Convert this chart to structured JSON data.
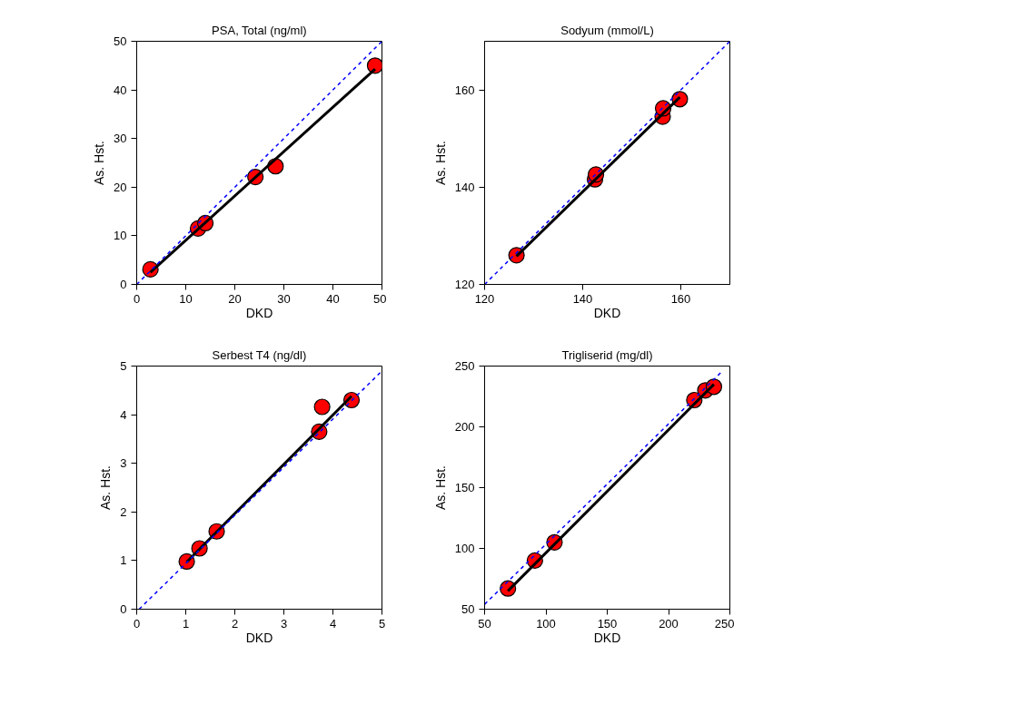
{
  "chart_data": [
    {
      "type": "scatter",
      "title": "PSA, Total (ng/ml)",
      "xlabel": "DKD",
      "ylabel": "As. Hst.",
      "xlim": [
        0,
        50
      ],
      "ylim": [
        0,
        50
      ],
      "xticks": [
        0,
        10,
        20,
        30,
        40,
        50
      ],
      "yticks": [
        0,
        10,
        20,
        30,
        40,
        50
      ],
      "grid": false,
      "series": [
        {
          "marker": "circle",
          "color": "#ff0000",
          "x": [
            2.8,
            12.5,
            14,
            24.2,
            28.3,
            48.6
          ],
          "values": [
            3.1,
            11.5,
            12.6,
            22.1,
            24.3,
            45
          ]
        },
        {
          "type": "line",
          "marker": "none",
          "color": "#000000",
          "line_style": "solid",
          "x": [
            2.8,
            48.6
          ],
          "values": [
            2.5,
            44.3
          ]
        },
        {
          "type": "line",
          "marker": "none",
          "color": "#0000ff",
          "line_style": "dashed",
          "x": [
            0,
            50
          ],
          "values": [
            0,
            50
          ]
        }
      ]
    },
    {
      "type": "scatter",
      "title": "Sodyum (mmol/L)",
      "xlabel": "DKD",
      "ylabel": "As. Hst.",
      "xlim": [
        120,
        170
      ],
      "ylim": [
        120,
        170
      ],
      "xticks": [
        120,
        140,
        160
      ],
      "yticks": [
        120,
        140,
        160
      ],
      "grid": false,
      "series": [
        {
          "marker": "circle",
          "color": "#ff0000",
          "x": [
            126.5,
            142.5,
            142.7,
            156.3,
            156.4,
            159.8
          ],
          "values": [
            126,
            141.6,
            142.6,
            154.5,
            156.2,
            158.1
          ]
        },
        {
          "type": "line",
          "marker": "none",
          "color": "#000000",
          "line_style": "solid",
          "x": [
            126.5,
            159.8
          ],
          "values": [
            125.8,
            158.5
          ]
        },
        {
          "type": "line",
          "marker": "none",
          "color": "#0000ff",
          "line_style": "dashed",
          "x": [
            120,
            170
          ],
          "values": [
            120,
            170
          ]
        }
      ]
    },
    {
      "type": "scatter",
      "title": "Serbest T4 (ng/dl)",
      "xlabel": "DKD",
      "ylabel": "As. Hst.",
      "xlim": [
        0,
        5
      ],
      "ylim": [
        0,
        5
      ],
      "xticks": [
        0,
        1,
        2,
        3,
        4,
        5
      ],
      "yticks": [
        0,
        1,
        2,
        3,
        4,
        5
      ],
      "grid": false,
      "series": [
        {
          "marker": "circle",
          "color": "#ff0000",
          "x": [
            1.02,
            1.28,
            1.63,
            3.72,
            3.78,
            4.38
          ],
          "values": [
            0.98,
            1.25,
            1.6,
            3.65,
            4.16,
            4.3
          ]
        },
        {
          "type": "line",
          "marker": "none",
          "color": "#000000",
          "line_style": "solid",
          "x": [
            1.02,
            4.38
          ],
          "values": [
            0.97,
            4.38
          ]
        },
        {
          "type": "line",
          "marker": "none",
          "color": "#0000ff",
          "line_style": "dashed",
          "x": [
            0.05,
            5
          ],
          "values": [
            0,
            4.9
          ]
        }
      ]
    },
    {
      "type": "scatter",
      "title": "Trigliserid (mg/dl)",
      "xlabel": "DKD",
      "ylabel": "As. Hst.",
      "xlim": [
        50,
        250
      ],
      "ylim": [
        50,
        250
      ],
      "xticks": [
        50,
        100,
        150,
        200,
        250
      ],
      "yticks": [
        50,
        100,
        150,
        200,
        250
      ],
      "grid": false,
      "series": [
        {
          "marker": "circle",
          "color": "#ff0000",
          "x": [
            69,
            91,
            107,
            221,
            230,
            237
          ],
          "values": [
            67,
            90,
            105,
            222,
            230,
            233
          ]
        },
        {
          "type": "line",
          "marker": "none",
          "color": "#000000",
          "line_style": "solid",
          "x": [
            69,
            237
          ],
          "values": [
            65,
            235
          ]
        },
        {
          "type": "line",
          "marker": "none",
          "color": "#0000ff",
          "line_style": "dashed",
          "x": [
            50,
            243
          ],
          "values": [
            54,
            245
          ]
        }
      ]
    }
  ]
}
